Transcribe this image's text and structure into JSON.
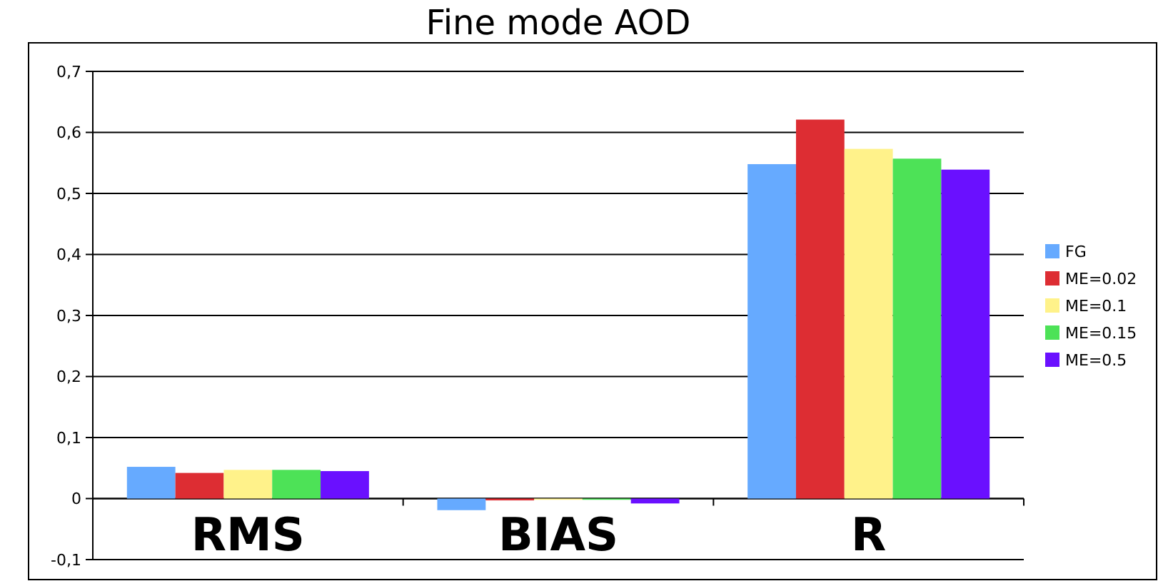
{
  "chart_data": {
    "type": "bar",
    "title": "Fine mode AOD",
    "categories": [
      "RMS",
      "BIAS",
      "R"
    ],
    "series": [
      {
        "name": "FG",
        "color": "#66aaff",
        "values": [
          0.052,
          -0.019,
          0.548
        ]
      },
      {
        "name": "ME=0.02",
        "color": "#dd2d33",
        "values": [
          0.042,
          -0.003,
          0.621
        ]
      },
      {
        "name": "ME=0.1",
        "color": "#fff28a",
        "values": [
          0.047,
          -0.002,
          0.573
        ]
      },
      {
        "name": "ME=0.15",
        "color": "#4de257",
        "values": [
          0.047,
          -0.002,
          0.557
        ]
      },
      {
        "name": "ME=0.5",
        "color": "#6a10ff",
        "values": [
          0.045,
          -0.008,
          0.539
        ]
      }
    ],
    "ylim": [
      -0.1,
      0.7
    ],
    "yticks": [
      {
        "value": -0.1,
        "label": "-0,1"
      },
      0,
      {
        "value": 0.1,
        "label": "0,1"
      },
      {
        "value": 0.2,
        "label": "0,2"
      },
      {
        "value": 0.3,
        "label": "0,3"
      },
      {
        "value": 0.4,
        "label": "0,4"
      },
      {
        "value": 0.5,
        "label": "0,5"
      },
      {
        "value": 0.6,
        "label": "0,6"
      },
      {
        "value": 0.7,
        "label": "0,7"
      }
    ],
    "grid": "y",
    "legend": "right"
  }
}
